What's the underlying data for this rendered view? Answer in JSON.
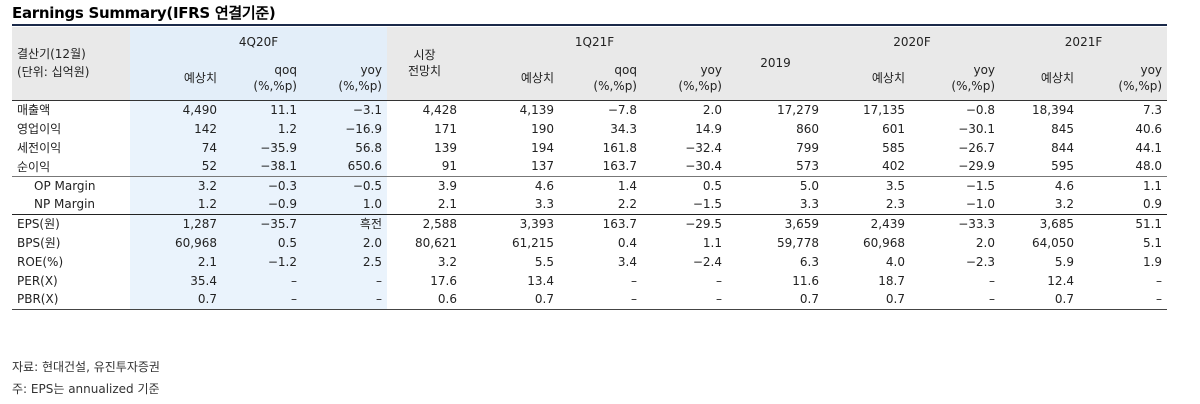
{
  "title": "Earnings Summary(IFRS 연결기준)",
  "header": {
    "row_label_1": "결산기(12월)",
    "row_label_2": "(단위: 십억원)",
    "group_4q20f": "4Q20F",
    "group_1q21f": "1Q21F",
    "group_2020f": "2020F",
    "group_2021f": "2021F",
    "consensus_1": "시장",
    "consensus_2": "전망치",
    "col_2019": "2019",
    "estimate": "예상치",
    "qoq": "qoq",
    "yoy": "yoy",
    "pct_unit": "(%,%p)"
  },
  "rows": [
    {
      "label": "매출액",
      "cells": [
        "4,490",
        "11.1",
        "−3.1",
        "4,428",
        "4,139",
        "−7.8",
        "2.0",
        "17,279",
        "17,135",
        "−0.8",
        "18,394",
        "7.3"
      ]
    },
    {
      "label": "영업이익",
      "cells": [
        "142",
        "1.2",
        "−16.9",
        "171",
        "190",
        "34.3",
        "14.9",
        "860",
        "601",
        "−30.1",
        "845",
        "40.6"
      ]
    },
    {
      "label": "세전이익",
      "cells": [
        "74",
        "−35.9",
        "56.8",
        "139",
        "194",
        "161.8",
        "−32.4",
        "799",
        "585",
        "−26.7",
        "844",
        "44.1"
      ]
    },
    {
      "label": "순이익",
      "cells": [
        "52",
        "−38.1",
        "650.6",
        "91",
        "137",
        "163.7",
        "−30.4",
        "573",
        "402",
        "−29.9",
        "595",
        "48.0"
      ]
    },
    {
      "label": "OP Margin",
      "cells": [
        "3.2",
        "−0.3",
        "−0.5",
        "3.9",
        "4.6",
        "1.4",
        "0.5",
        "5.0",
        "3.5",
        "−1.5",
        "4.6",
        "1.1"
      ]
    },
    {
      "label": "NP Margin",
      "cells": [
        "1.2",
        "−0.9",
        "1.0",
        "2.1",
        "3.3",
        "2.2",
        "−1.5",
        "3.3",
        "2.3",
        "−1.0",
        "3.2",
        "0.9"
      ]
    },
    {
      "label": "EPS(원)",
      "cells": [
        "1,287",
        "−35.7",
        "흑전",
        "2,588",
        "3,393",
        "163.7",
        "−29.5",
        "3,659",
        "2,439",
        "−33.3",
        "3,685",
        "51.1"
      ]
    },
    {
      "label": "BPS(원)",
      "cells": [
        "60,968",
        "0.5",
        "2.0",
        "80,621",
        "61,215",
        "0.4",
        "1.1",
        "59,778",
        "60,968",
        "2.0",
        "64,050",
        "5.1"
      ]
    },
    {
      "label": "ROE(%)",
      "cells": [
        "2.1",
        "−1.2",
        "2.5",
        "3.2",
        "5.5",
        "3.4",
        "−2.4",
        "6.3",
        "4.0",
        "−2.3",
        "5.9",
        "1.9"
      ]
    },
    {
      "label": "PER(X)",
      "cells": [
        "35.4",
        "–",
        "–",
        "17.6",
        "13.4",
        "–",
        "–",
        "11.6",
        "18.7",
        "–",
        "12.4",
        "–"
      ]
    },
    {
      "label": "PBR(X)",
      "cells": [
        "0.7",
        "–",
        "–",
        "0.6",
        "0.7",
        "–",
        "–",
        "0.7",
        "0.7",
        "–",
        "0.7",
        "–"
      ]
    }
  ],
  "footnotes": {
    "source": "자료: 현대건설, 유진투자증권",
    "note": "주: EPS는 annualized 기준"
  }
}
